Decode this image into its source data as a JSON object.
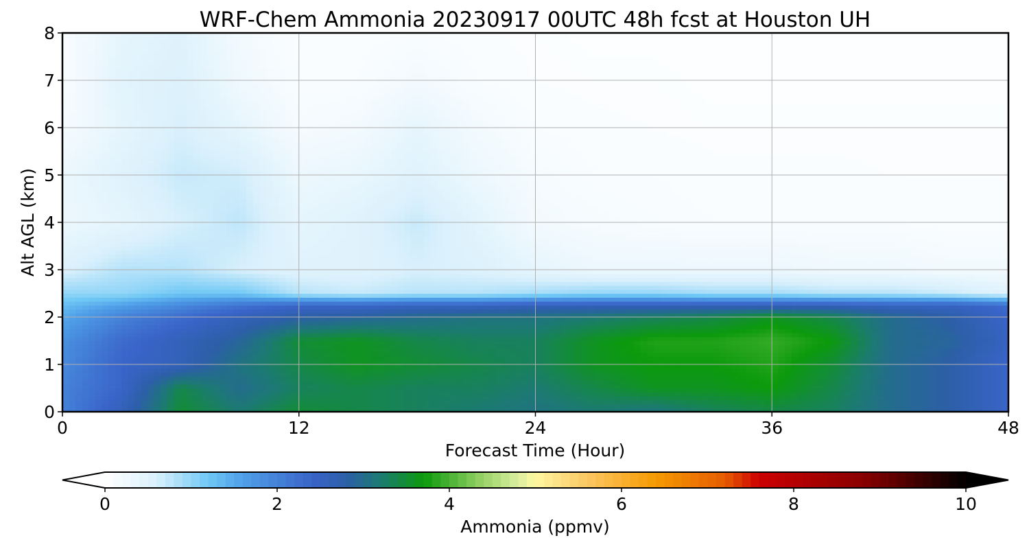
{
  "chart_data": {
    "type": "heatmap",
    "title": "WRF-Chem Ammonia  20230917 00UTC 48h fcst at Houston UH",
    "xlabel": "Forecast Time (Hour)",
    "ylabel": "Alt AGL (km)",
    "xlim": [
      0,
      48
    ],
    "ylim": [
      0,
      8
    ],
    "x_ticks": [
      0,
      12,
      24,
      36,
      48
    ],
    "y_ticks": [
      0,
      1,
      2,
      3,
      4,
      5,
      6,
      7,
      8
    ],
    "grid": true,
    "x": [
      0,
      3,
      6,
      9,
      12,
      15,
      18,
      21,
      24,
      27,
      30,
      33,
      36,
      39,
      42,
      45,
      48
    ],
    "y": [
      0,
      0.5,
      1,
      1.5,
      2,
      2.25,
      2.5,
      3,
      4,
      5,
      6,
      7,
      8
    ],
    "z": [
      [
        2.0,
        2.6,
        3.5,
        3.2,
        3.5,
        3.4,
        3.3,
        3.2,
        3.1,
        3.2,
        3.1,
        3.3,
        3.4,
        3.3,
        3.0,
        2.8,
        2.4
      ],
      [
        2.0,
        2.4,
        3.4,
        3.0,
        3.3,
        3.4,
        3.3,
        3.3,
        3.2,
        3.4,
        3.6,
        3.6,
        3.7,
        3.4,
        3.0,
        2.8,
        2.4
      ],
      [
        1.9,
        2.4,
        2.6,
        3.1,
        3.4,
        3.6,
        3.5,
        3.4,
        3.3,
        3.6,
        3.7,
        3.7,
        3.8,
        3.5,
        3.0,
        2.8,
        2.4
      ],
      [
        1.8,
        2.3,
        2.6,
        2.9,
        3.5,
        3.6,
        3.4,
        3.3,
        3.3,
        3.6,
        3.8,
        3.8,
        3.9,
        3.7,
        3.0,
        2.9,
        2.5
      ],
      [
        1.5,
        2.0,
        2.3,
        2.6,
        2.8,
        2.9,
        3.0,
        3.1,
        3.1,
        3.2,
        3.3,
        3.4,
        3.6,
        3.4,
        3.0,
        2.8,
        2.4
      ],
      [
        1.3,
        1.6,
        1.9,
        2.2,
        2.4,
        2.4,
        2.5,
        2.5,
        2.6,
        2.6,
        2.6,
        2.6,
        2.6,
        2.6,
        2.5,
        2.5,
        2.3
      ],
      [
        1.0,
        1.0,
        1.2,
        1.2,
        0.8,
        0.7,
        0.8,
        0.8,
        0.9,
        1.0,
        1.0,
        0.9,
        0.9,
        0.8,
        0.8,
        0.7,
        0.5
      ],
      [
        0.55,
        0.8,
        0.8,
        0.6,
        0.5,
        0.5,
        0.6,
        0.55,
        0.4,
        0.3,
        0.3,
        0.3,
        0.3,
        0.25,
        0.25,
        0.2,
        0.2
      ],
      [
        0.3,
        0.4,
        0.6,
        0.75,
        0.4,
        0.5,
        0.7,
        0.45,
        0.2,
        0.15,
        0.12,
        0.1,
        0.1,
        0.1,
        0.1,
        0.08,
        0.08
      ],
      [
        0.3,
        0.5,
        0.7,
        0.65,
        0.3,
        0.35,
        0.5,
        0.3,
        0.15,
        0.1,
        0.1,
        0.08,
        0.08,
        0.08,
        0.07,
        0.07,
        0.07
      ],
      [
        0.15,
        0.4,
        0.6,
        0.4,
        0.15,
        0.2,
        0.4,
        0.2,
        0.1,
        0.08,
        0.07,
        0.06,
        0.06,
        0.06,
        0.06,
        0.06,
        0.06
      ],
      [
        0.1,
        0.45,
        0.55,
        0.25,
        0.1,
        0.1,
        0.2,
        0.1,
        0.07,
        0.06,
        0.06,
        0.05,
        0.05,
        0.05,
        0.05,
        0.05,
        0.05
      ],
      [
        0.1,
        0.4,
        0.5,
        0.2,
        0.08,
        0.08,
        0.1,
        0.08,
        0.06,
        0.05,
        0.05,
        0.05,
        0.05,
        0.05,
        0.05,
        0.05,
        0.05
      ]
    ],
    "colorbar": {
      "label": "Ammonia  (ppmv)",
      "min": 0,
      "max": 10,
      "ticks": [
        0,
        2,
        4,
        6,
        8,
        10
      ],
      "extend": "both",
      "orientation": "horizontal"
    },
    "colors": {
      "stops": [
        {
          "v": 0.0,
          "c": "#ffffff"
        },
        {
          "v": 0.6,
          "c": "#d9f0fc"
        },
        {
          "v": 1.2,
          "c": "#6fc8f5"
        },
        {
          "v": 1.6,
          "c": "#4f9fe8"
        },
        {
          "v": 2.4,
          "c": "#3a64c9"
        },
        {
          "v": 2.8,
          "c": "#2c5fa8"
        },
        {
          "v": 3.2,
          "c": "#1c7a72"
        },
        {
          "v": 3.7,
          "c": "#0c9a0c"
        },
        {
          "v": 4.4,
          "c": "#9bd36a"
        },
        {
          "v": 4.8,
          "c": "#d9ee9e"
        },
        {
          "v": 5.0,
          "c": "#fff7a0"
        },
        {
          "v": 5.6,
          "c": "#fbc763"
        },
        {
          "v": 6.4,
          "c": "#f59a00"
        },
        {
          "v": 7.2,
          "c": "#e65c00"
        },
        {
          "v": 7.6,
          "c": "#cc0000"
        },
        {
          "v": 8.8,
          "c": "#8a0000"
        },
        {
          "v": 10.0,
          "c": "#000000"
        }
      ],
      "axis_line": "#000000",
      "grid_line": "#b0b0b0"
    }
  }
}
